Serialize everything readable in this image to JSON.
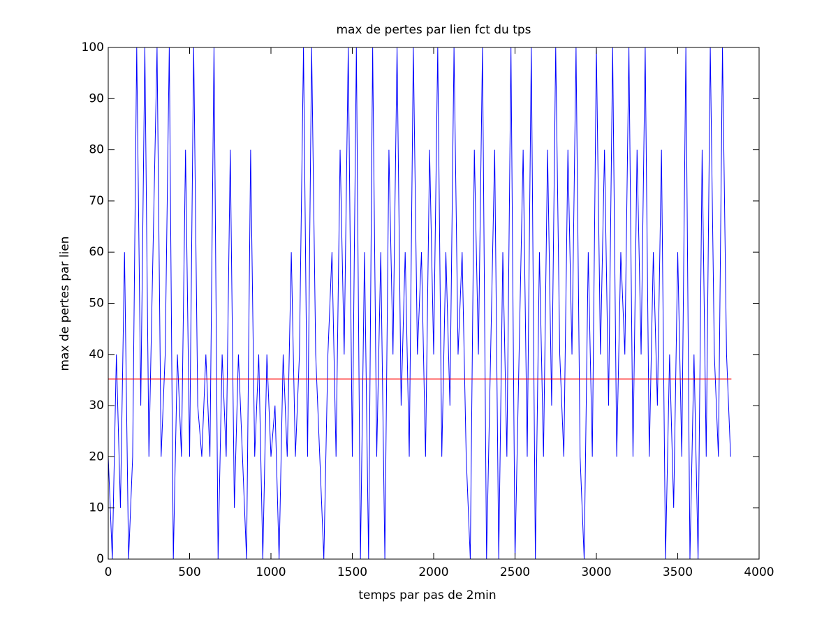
{
  "chart_data": {
    "type": "line",
    "title": "max de pertes par lien fct du tps",
    "xlabel": "temps par pas de 2min",
    "ylabel": "max de pertes par lien",
    "xlim": [
      0,
      4000
    ],
    "ylim": [
      0,
      100
    ],
    "xticks": [
      0,
      500,
      1000,
      1500,
      2000,
      2500,
      3000,
      3500,
      4000
    ],
    "yticks": [
      0,
      10,
      20,
      30,
      40,
      50,
      60,
      70,
      80,
      90,
      100
    ],
    "grid": false,
    "series": [
      {
        "color": "#0000ff",
        "x": [
          0,
          25,
          50,
          75,
          100,
          125,
          150,
          175,
          200,
          225,
          250,
          275,
          300,
          325,
          350,
          375,
          400,
          425,
          450,
          475,
          500,
          525,
          550,
          575,
          600,
          625,
          650,
          675,
          700,
          725,
          750,
          775,
          800,
          825,
          850,
          875,
          900,
          925,
          950,
          975,
          1000,
          1025,
          1050,
          1075,
          1100,
          1125,
          1150,
          1175,
          1200,
          1225,
          1250,
          1275,
          1300,
          1325,
          1350,
          1375,
          1400,
          1425,
          1450,
          1475,
          1500,
          1525,
          1550,
          1575,
          1600,
          1625,
          1650,
          1675,
          1700,
          1725,
          1750,
          1775,
          1800,
          1825,
          1850,
          1875,
          1900,
          1925,
          1950,
          1975,
          2000,
          2025,
          2050,
          2075,
          2100,
          2125,
          2150,
          2175,
          2200,
          2225,
          2250,
          2275,
          2300,
          2325,
          2350,
          2375,
          2400,
          2425,
          2450,
          2475,
          2500,
          2525,
          2550,
          2575,
          2600,
          2625,
          2650,
          2675,
          2700,
          2725,
          2750,
          2775,
          2800,
          2825,
          2850,
          2875,
          2900,
          2925,
          2950,
          2975,
          3000,
          3025,
          3050,
          3075,
          3100,
          3125,
          3150,
          3175,
          3200,
          3225,
          3250,
          3275,
          3300,
          3325,
          3350,
          3375,
          3400,
          3425,
          3450,
          3475,
          3500,
          3525,
          3550,
          3575,
          3600,
          3625,
          3650,
          3675,
          3700,
          3725,
          3750,
          3775,
          3800,
          3825
        ],
        "values": [
          20,
          0,
          40,
          10,
          60,
          0,
          20,
          100,
          30,
          100,
          20,
          60,
          100,
          20,
          40,
          100,
          0,
          40,
          20,
          80,
          20,
          100,
          30,
          20,
          40,
          20,
          100,
          0,
          40,
          20,
          80,
          10,
          40,
          20,
          0,
          80,
          20,
          40,
          0,
          40,
          20,
          30,
          0,
          40,
          20,
          60,
          20,
          40,
          100,
          20,
          100,
          40,
          20,
          0,
          40,
          60,
          20,
          80,
          40,
          100,
          20,
          100,
          0,
          60,
          0,
          100,
          20,
          60,
          0,
          80,
          40,
          100,
          30,
          60,
          20,
          100,
          40,
          60,
          20,
          80,
          40,
          100,
          20,
          60,
          30,
          100,
          40,
          60,
          20,
          0,
          80,
          40,
          100,
          0,
          40,
          80,
          0,
          60,
          20,
          100,
          0,
          40,
          80,
          20,
          100,
          0,
          60,
          20,
          80,
          30,
          100,
          40,
          20,
          80,
          40,
          100,
          20,
          0,
          60,
          20,
          100,
          40,
          80,
          30,
          100,
          20,
          60,
          40,
          100,
          20,
          80,
          40,
          100,
          20,
          60,
          30,
          80,
          0,
          40,
          10,
          60,
          20,
          100,
          0,
          40,
          0,
          80,
          20,
          100,
          40,
          20,
          100,
          40,
          20
        ]
      },
      {
        "color": "#ff0000",
        "x": [
          0,
          3830
        ],
        "values": [
          35.2,
          35.2
        ]
      }
    ]
  }
}
